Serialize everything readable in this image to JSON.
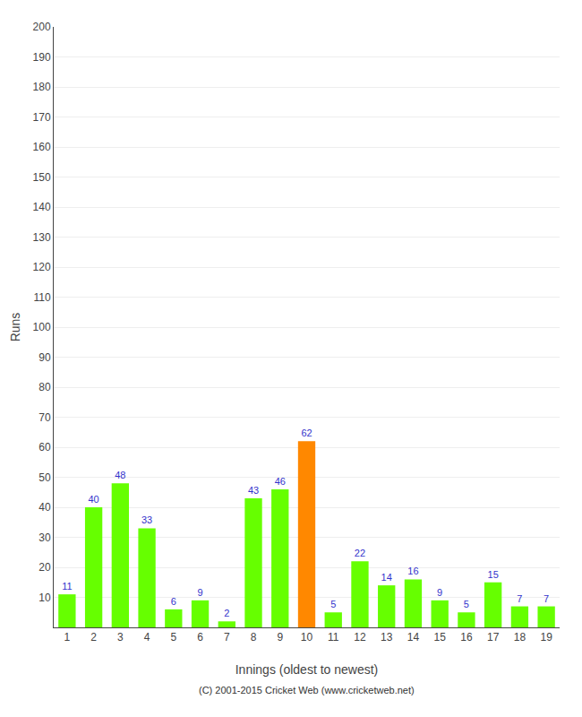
{
  "chart_data": {
    "type": "bar",
    "xlabel": "Innings (oldest to newest)",
    "ylabel": "Runs",
    "categories": [
      "1",
      "2",
      "3",
      "4",
      "5",
      "6",
      "7",
      "8",
      "9",
      "10",
      "11",
      "12",
      "13",
      "14",
      "15",
      "16",
      "17",
      "18",
      "19"
    ],
    "values": [
      11,
      40,
      48,
      33,
      6,
      9,
      2,
      43,
      46,
      62,
      5,
      22,
      14,
      16,
      9,
      5,
      15,
      7,
      7
    ],
    "colors": [
      "#66ff00",
      "#66ff00",
      "#66ff00",
      "#66ff00",
      "#66ff00",
      "#66ff00",
      "#66ff00",
      "#66ff00",
      "#66ff00",
      "#ff8800",
      "#66ff00",
      "#66ff00",
      "#66ff00",
      "#66ff00",
      "#66ff00",
      "#66ff00",
      "#66ff00",
      "#66ff00",
      "#66ff00"
    ],
    "ylim": [
      0,
      200
    ],
    "yticks": [
      10,
      20,
      30,
      40,
      50,
      60,
      70,
      80,
      90,
      100,
      110,
      120,
      130,
      140,
      150,
      160,
      170,
      180,
      190,
      200
    ],
    "grid": true,
    "data_labels": true,
    "annotations": [
      "(C) 2001-2015 Cricket Web (www.cricketweb.net)"
    ]
  }
}
